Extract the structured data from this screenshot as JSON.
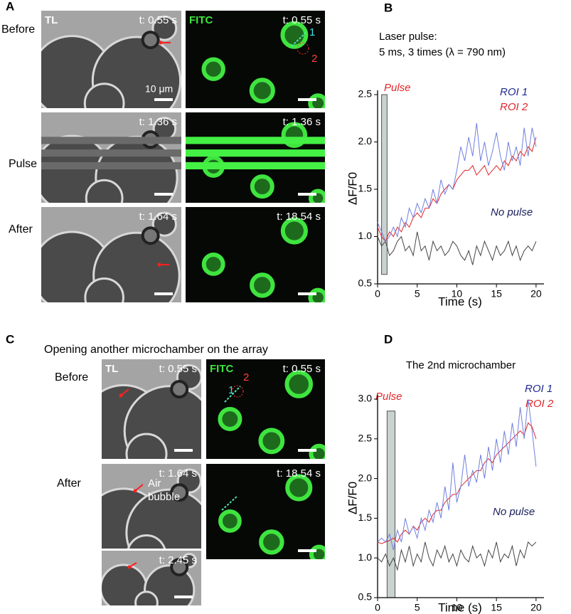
{
  "figure": {
    "A": {
      "letter": "A",
      "rows": [
        "Before",
        "Pulse",
        "After"
      ],
      "channels": [
        "TL",
        "FITC"
      ],
      "times": [
        [
          "t: 0.55 s",
          "t: 0.55 s"
        ],
        [
          "t: 1.36 s",
          "t: 1.36 s"
        ],
        [
          "t: 1.64 s",
          "t: 18.54 s"
        ]
      ],
      "scale_bar": "10 μm",
      "roi": [
        "1",
        "2"
      ]
    },
    "C": {
      "letter": "C",
      "caption": "Opening another microchamber on the array",
      "rows": [
        "Before",
        "After"
      ],
      "channels": [
        "TL",
        "FITC"
      ],
      "times": [
        [
          "t: 0.55 s",
          "t: 0.55 s"
        ],
        [
          "t: 1.64 s",
          "t: 18.54 s"
        ]
      ],
      "inset_time": "t: 2.45 s",
      "roi": [
        "1",
        "2"
      ],
      "annotation": [
        "Air",
        "bubble"
      ]
    }
  },
  "chart_data": [
    {
      "type": "line",
      "letter": "B",
      "annotation": [
        "Laser pulse:",
        "5 ms, 3 times (λ = 790 nm)"
      ],
      "pulse_label": "Pulse",
      "pulse": {
        "x": [
          0.5,
          1.2
        ],
        "y": [
          0.6,
          2.5
        ]
      },
      "xlabel": "Time (s)",
      "ylabel": "ΔF/F0",
      "x": [
        0,
        0.5,
        1,
        1.5,
        2,
        2.5,
        3,
        3.5,
        4,
        4.5,
        5,
        5.5,
        6,
        6.5,
        7,
        7.5,
        8,
        8.5,
        9,
        9.5,
        10,
        10.5,
        11,
        11.5,
        12,
        12.5,
        13,
        13.5,
        14,
        14.5,
        15,
        15.5,
        16,
        16.5,
        17,
        17.5,
        18,
        18.5,
        19,
        19.5,
        20
      ],
      "series": [
        {
          "name": "ROI 1",
          "color": "#1f2a8c",
          "line_color": "#6f7fe0",
          "values": [
            1.15,
            1.05,
            0.95,
            1.0,
            1.1,
            1.0,
            1.2,
            1.1,
            1.3,
            1.2,
            1.35,
            1.25,
            1.4,
            1.3,
            1.5,
            1.35,
            1.6,
            1.45,
            1.55,
            1.5,
            1.7,
            1.95,
            1.8,
            2.05,
            1.85,
            2.2,
            1.8,
            2.0,
            1.75,
            1.9,
            2.1,
            1.85,
            1.7,
            2.0,
            1.8,
            1.95,
            1.75,
            2.15,
            1.85,
            2.15,
            1.95
          ]
        },
        {
          "name": "ROI 2",
          "color": "#e0262a",
          "line_color": "#e0262a",
          "values": [
            1.1,
            1.0,
            0.95,
            1.05,
            1.0,
            1.1,
            1.05,
            1.15,
            1.1,
            1.2,
            1.25,
            1.2,
            1.3,
            1.3,
            1.4,
            1.35,
            1.45,
            1.5,
            1.55,
            1.5,
            1.6,
            1.65,
            1.7,
            1.7,
            1.75,
            1.65,
            1.7,
            1.75,
            1.65,
            1.7,
            1.75,
            1.7,
            1.8,
            1.75,
            1.85,
            1.8,
            1.9,
            1.85,
            1.95,
            1.9,
            2.05
          ]
        },
        {
          "name": "No pulse",
          "color": "#1a1f5c",
          "line_color": "#444444",
          "values": [
            1.0,
            0.9,
            0.95,
            0.8,
            0.85,
            0.95,
            1.0,
            0.85,
            0.9,
            0.8,
            1.05,
            0.85,
            0.9,
            0.75,
            0.95,
            0.85,
            0.9,
            0.8,
            0.85,
            0.95,
            0.9,
            0.8,
            0.75,
            0.85,
            0.7,
            0.9,
            0.8,
            0.95,
            0.85,
            0.75,
            0.9,
            0.8,
            0.85,
            0.95,
            0.8,
            0.9,
            0.75,
            0.85,
            0.9,
            0.85,
            0.95
          ]
        }
      ],
      "xlim": [
        0,
        21
      ],
      "ylim": [
        0.5,
        2.5
      ],
      "xticks": [
        0,
        5,
        10,
        15,
        20
      ],
      "yticks": [
        0.5,
        {
          "value": 1,
          "label": "1.0"
        },
        1.5,
        {
          "value": 2,
          "label": "2.0"
        },
        2.5
      ]
    },
    {
      "type": "line",
      "letter": "D",
      "title": "The 2nd microchamber",
      "pulse_label": "Pulse",
      "pulse": {
        "x": [
          1.2,
          2.2
        ],
        "y": [
          0.5,
          2.85
        ]
      },
      "xlabel": "Time (s)",
      "ylabel": "ΔF/F0",
      "x": [
        0,
        0.5,
        1,
        1.5,
        2,
        2.5,
        3,
        3.5,
        4,
        4.5,
        5,
        5.5,
        6,
        6.5,
        7,
        7.5,
        8,
        8.5,
        9,
        9.5,
        10,
        10.5,
        11,
        11.5,
        12,
        12.5,
        13,
        13.5,
        14,
        14.5,
        15,
        15.5,
        16,
        16.5,
        17,
        17.5,
        18,
        18.5,
        19,
        19.5,
        20
      ],
      "series": [
        {
          "name": "ROI 1",
          "color": "#1f2a8c",
          "line_color": "#6f7fe0",
          "values": [
            1.2,
            1.25,
            1.2,
            1.3,
            1.1,
            1.35,
            1.2,
            1.5,
            1.3,
            1.4,
            1.25,
            1.5,
            1.35,
            1.6,
            1.45,
            1.7,
            1.5,
            1.9,
            1.6,
            2.2,
            1.7,
            1.9,
            2.3,
            1.9,
            2.1,
            1.95,
            2.3,
            2.0,
            2.4,
            2.1,
            2.5,
            2.2,
            2.6,
            2.3,
            2.7,
            2.4,
            2.9,
            2.5,
            3.0,
            2.6,
            2.15
          ]
        },
        {
          "name": "ROI 2",
          "color": "#e0262a",
          "line_color": "#e0262a",
          "values": [
            1.2,
            1.18,
            1.2,
            1.22,
            1.25,
            1.2,
            1.3,
            1.35,
            1.3,
            1.4,
            1.35,
            1.45,
            1.5,
            1.45,
            1.55,
            1.6,
            1.6,
            1.7,
            1.75,
            1.8,
            1.8,
            1.9,
            1.95,
            2.0,
            2.05,
            2.1,
            2.1,
            2.2,
            2.25,
            2.2,
            2.3,
            2.35,
            2.4,
            2.45,
            2.5,
            2.55,
            2.6,
            2.55,
            2.7,
            2.65,
            2.5
          ]
        },
        {
          "name": "No pulse",
          "color": "#1a1f5c",
          "line_color": "#444444",
          "values": [
            1.0,
            0.95,
            1.05,
            0.9,
            1.0,
            0.85,
            1.1,
            0.95,
            1.15,
            0.9,
            1.05,
            0.95,
            1.2,
            1.0,
            0.9,
            1.1,
            1.0,
            1.15,
            0.95,
            1.05,
            0.9,
            1.1,
            1.0,
            0.95,
            1.15,
            1.0,
            1.05,
            0.9,
            1.1,
            1.0,
            1.2,
            0.95,
            1.05,
            1.0,
            1.15,
            0.9,
            1.1,
            1.0,
            1.2,
            1.15,
            1.2
          ]
        }
      ],
      "xlim": [
        0,
        21
      ],
      "ylim": [
        0.5,
        3.0
      ],
      "xticks": [
        0,
        5,
        10,
        15,
        20
      ],
      "yticks": [
        0.5,
        {
          "value": 1,
          "label": "1.0"
        },
        1.5,
        {
          "value": 2,
          "label": "2.0"
        },
        2.5,
        {
          "value": 3,
          "label": "3.0"
        }
      ]
    }
  ]
}
